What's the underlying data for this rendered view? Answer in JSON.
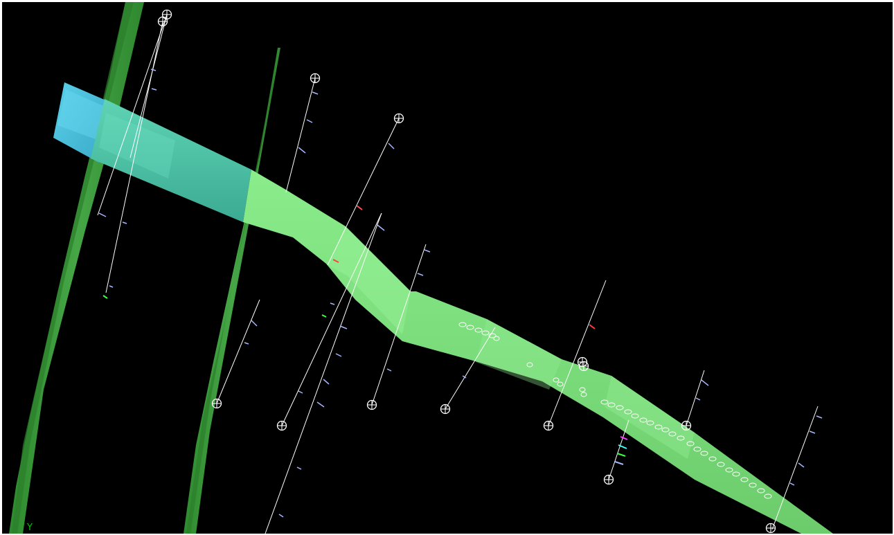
{
  "viewport": {
    "background": "#000000",
    "axis_indicator": {
      "label": "Y",
      "color": "#00c800"
    }
  },
  "scene": {
    "fault_planes": [
      {
        "name": "fault-plane-left",
        "color": "#3a9a3a",
        "shade": "#2f842f"
      },
      {
        "name": "fault-plane-middle",
        "color": "#3f9f3f",
        "shade": "#318831"
      }
    ],
    "surfaces": [
      {
        "name": "horizon-surface-blue",
        "color": "#4fc3d8"
      },
      {
        "name": "horizon-surface-teal",
        "color": "#4cc4a4"
      },
      {
        "name": "horizon-surface-green",
        "color": "#7ee07e"
      }
    ],
    "wells": {
      "count": 15,
      "trajectory_color": "#ffffff",
      "marker_icon": "crosshair-circle-icon",
      "tick_color": "#a8b8ff",
      "highlight_colors": [
        "#ff4040",
        "#40ff40",
        "#ff40ff",
        "#40ffff"
      ]
    },
    "point_cloud": {
      "name": "pick-points",
      "color": "#ffffff"
    }
  }
}
